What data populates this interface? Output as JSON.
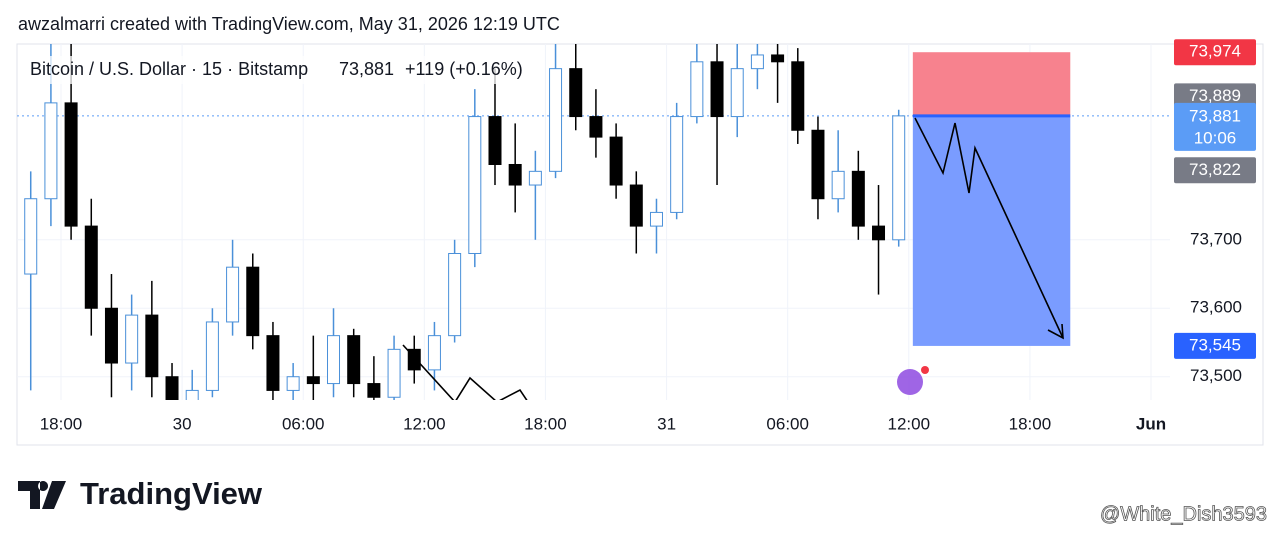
{
  "header": "awzalmarri created with TradingView.com, May 31, 2026 12:19 UTC",
  "footer": {
    "logo": "TradingView",
    "watermark": "@White_Dish3593"
  },
  "chart_data": {
    "type": "candlestick",
    "title": "Bitcoin / U.S. Dollar · 15 · Bitstamp",
    "last_price": "73,881",
    "change": "+119 (+0.16%)",
    "up_color": "#4a90d9",
    "down_color": "#000000",
    "x": [
      -1.5,
      -0.5,
      0.5,
      1.5,
      2.5,
      3.5,
      4.5,
      5.5,
      6.5,
      7.5,
      8.5,
      9.5,
      10.5,
      11.5,
      12.5,
      13.5,
      14.5,
      15.5,
      16.5,
      17.5,
      18.5,
      19.5,
      20.5,
      21.5,
      22.5,
      23.5,
      24.5,
      25.5,
      26.5,
      27.5,
      28.5,
      29.5,
      30.5,
      31.5,
      32.5,
      33.5,
      34.5,
      35.5,
      36.5,
      37.5,
      38.5,
      39.5,
      40.5,
      41.5
    ],
    "open": [
      73650,
      73760,
      73900,
      73720,
      73600,
      73520,
      73590,
      73500,
      73460,
      73480,
      73580,
      73660,
      73560,
      73480,
      73500,
      73490,
      73560,
      73490,
      73470,
      73540,
      73510,
      73560,
      73680,
      73880,
      73810,
      73780,
      73800,
      73950,
      73880,
      73850,
      73780,
      73720,
      73740,
      73880,
      73960,
      73880,
      73950,
      73970,
      73960,
      73860,
      73760,
      73800,
      73720,
      73700
    ],
    "high": [
      73800,
      74000,
      73990,
      73760,
      73650,
      73620,
      73640,
      73520,
      73510,
      73600,
      73700,
      73680,
      73580,
      73520,
      73560,
      73600,
      73570,
      73530,
      73560,
      73560,
      73580,
      73700,
      73920,
      73950,
      73870,
      73830,
      73990,
      74000,
      73920,
      73870,
      73800,
      73760,
      73900,
      74000,
      74000,
      73990,
      74000,
      74000,
      73980,
      73880,
      73860,
      73830,
      73780,
      73890
    ],
    "low": [
      73480,
      73720,
      73700,
      73560,
      73470,
      73480,
      73470,
      73440,
      73430,
      73470,
      73560,
      73540,
      73450,
      73440,
      73460,
      73470,
      73470,
      73450,
      73460,
      73490,
      73480,
      73550,
      73660,
      73780,
      73740,
      73700,
      73790,
      73860,
      73820,
      73760,
      73680,
      73680,
      73730,
      73870,
      73780,
      73850,
      73920,
      73900,
      73840,
      73730,
      73740,
      73700,
      73620,
      73690
    ],
    "close": [
      73760,
      73900,
      73720,
      73600,
      73520,
      73590,
      73500,
      73460,
      73480,
      73580,
      73660,
      73560,
      73480,
      73500,
      73490,
      73560,
      73490,
      73470,
      73540,
      73510,
      73560,
      73680,
      73880,
      73810,
      73780,
      73800,
      73950,
      73880,
      73850,
      73780,
      73720,
      73740,
      73880,
      73960,
      73880,
      73950,
      73970,
      73960,
      73860,
      73760,
      73800,
      73720,
      73700,
      73881
    ],
    "xlim": [
      -2.18,
      54.94
    ],
    "xticks": [
      {
        "value": 0,
        "label": "18:00"
      },
      {
        "value": 6,
        "label": "30"
      },
      {
        "value": 12,
        "label": "06:00"
      },
      {
        "value": 18,
        "label": "12:00"
      },
      {
        "value": 24,
        "label": "18:00"
      },
      {
        "value": 30,
        "label": "31"
      },
      {
        "value": 36,
        "label": "06:00"
      },
      {
        "value": 42,
        "label": "12:00"
      },
      {
        "value": 48,
        "label": "18:00"
      },
      {
        "value": 54,
        "label": "Jun"
      }
    ],
    "ylim": [
      73466,
      73986
    ],
    "yticks": [
      {
        "value": 73500,
        "label": "73,500"
      },
      {
        "value": 73600,
        "label": "73,600"
      },
      {
        "value": 73700,
        "label": "73,700"
      }
    ],
    "grid": true,
    "position": {
      "stop": 73974,
      "entry": 73881,
      "target": 73545,
      "x_start": 42.2,
      "x_end": 50.0,
      "stop_color": "#f7828e",
      "target_color": "#7a9cff"
    },
    "price_labels": [
      {
        "value": 73974,
        "label": "73,974",
        "color": "#f23645"
      },
      {
        "value": 73889,
        "label": "73,889",
        "color": "#787b86"
      },
      {
        "value": 73881,
        "label": "73,881",
        "color": "#5b9cf6"
      },
      {
        "value": 73822,
        "label": "73,822",
        "color": "#787b86"
      },
      {
        "value": 73545,
        "label": "73,545",
        "color": "#2962ff"
      }
    ],
    "countdown": "10:06"
  }
}
